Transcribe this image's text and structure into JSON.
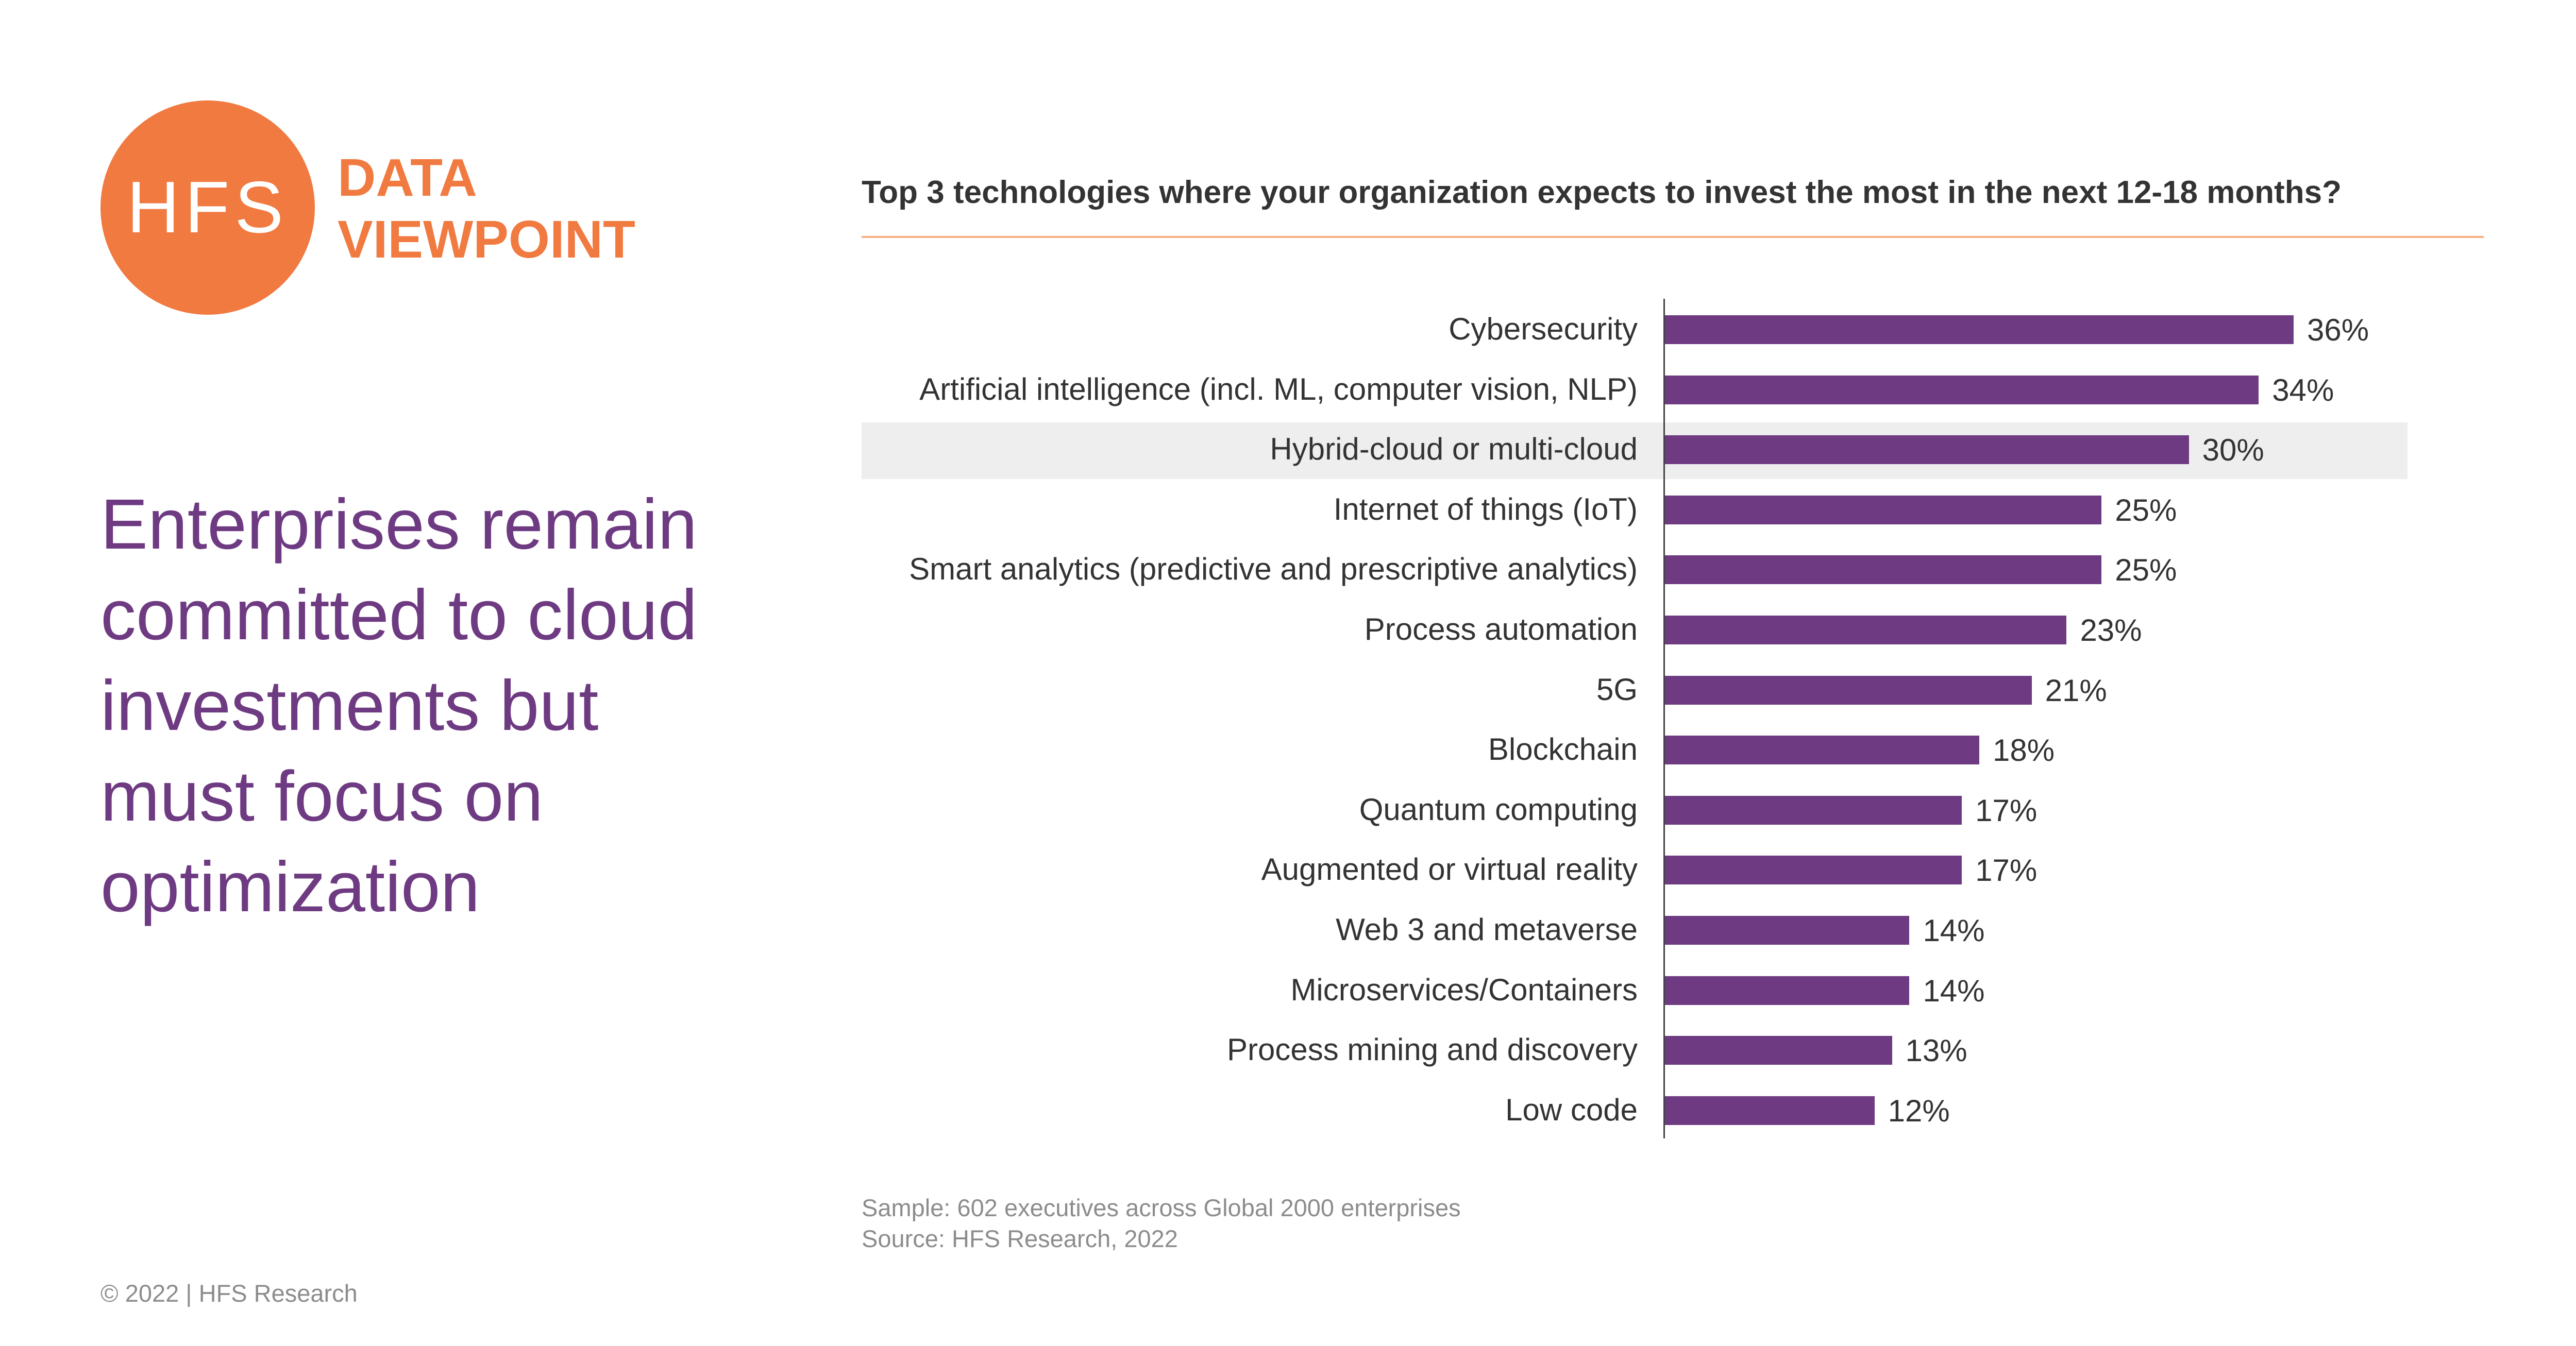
{
  "logo": {
    "mark": "HFS",
    "line1": "DATA",
    "line2": "VIEWPOINT",
    "color": "#F07A40"
  },
  "headline": "Enterprises remain committed to cloud investments but must focus on optimization",
  "chart_title": "Top 3 technologies where your organization expects to invest the most in the next 12-18 months?",
  "chart_data": {
    "type": "bar",
    "orientation": "horizontal",
    "categories": [
      "Cybersecurity",
      "Artificial intelligence (incl. ML, computer vision, NLP)",
      "Hybrid-cloud or multi-cloud",
      "Internet of things (IoT)",
      "Smart analytics (predictive and prescriptive analytics)",
      "Process automation",
      "5G",
      "Blockchain",
      "Quantum computing",
      "Augmented or virtual reality",
      "Web 3 and metaverse",
      "Microservices/Containers",
      "Process mining and discovery",
      "Low code"
    ],
    "values": [
      36,
      34,
      30,
      25,
      25,
      23,
      21,
      18,
      17,
      17,
      14,
      14,
      13,
      12
    ],
    "value_labels": [
      "36%",
      "34%",
      "30%",
      "25%",
      "25%",
      "23%",
      "21%",
      "18%",
      "17%",
      "17%",
      "14%",
      "14%",
      "13%",
      "12%"
    ],
    "unit": "%",
    "xlim": [
      0,
      40
    ],
    "highlighted_category": "Hybrid-cloud or multi-cloud",
    "bar_color": "#6E3A82",
    "grid": false,
    "legend": "none"
  },
  "footnotes": {
    "sample": "Sample: 602 executives across Global 2000 enterprises",
    "source": "Source: HFS Research, 2022"
  },
  "copyright": "© 2022 | HFS Research"
}
